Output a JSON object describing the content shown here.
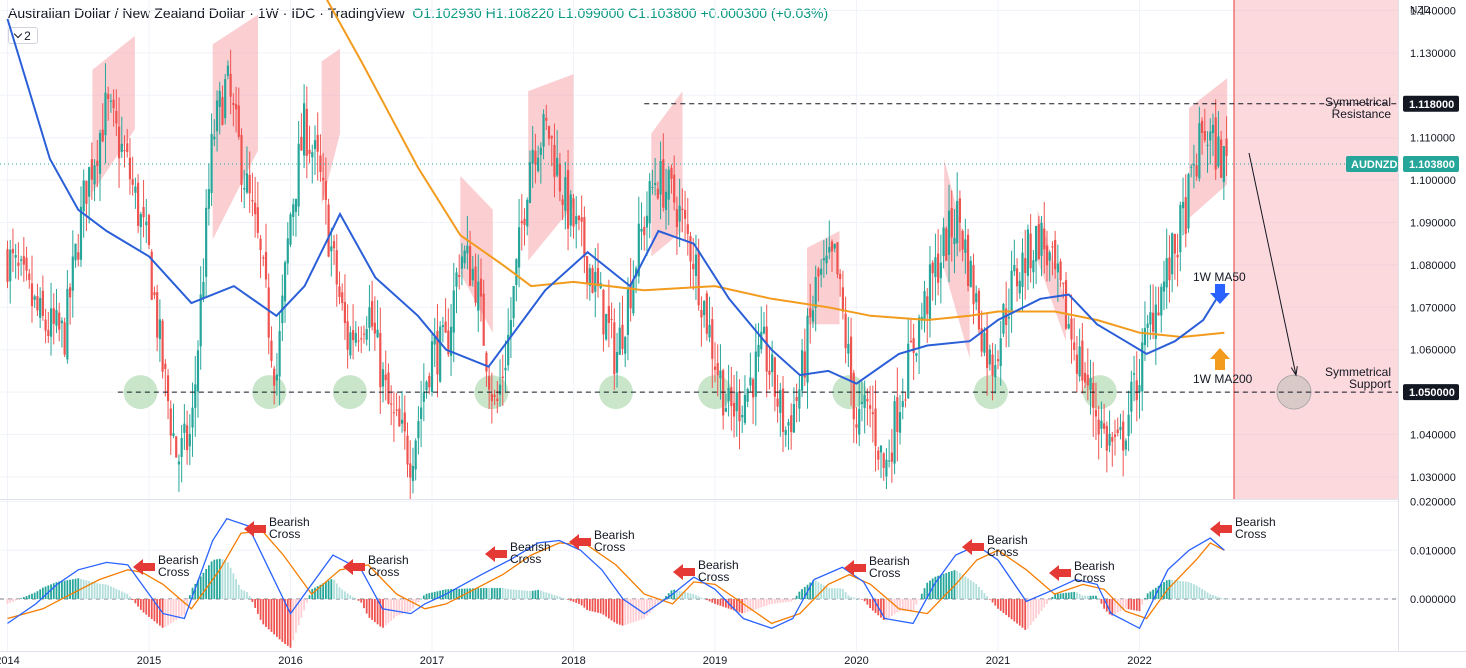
{
  "header": {
    "title": "Australian Dollar / New Zealand Dollar",
    "timeframe": "1W",
    "exchange": "IDC",
    "platform": "TradingView",
    "open": "O1.102930",
    "high": "H1.108220",
    "low": "L1.099000",
    "close": "C1.103800",
    "change": "+0.000300 (+0.03%)",
    "indicator_count": "2"
  },
  "colors": {
    "up": "#26a69a",
    "down": "#ef5350",
    "ma50": "#2a5fd8",
    "ma200": "#f29b1d",
    "macd": "#2962ff",
    "signal": "#f57c00",
    "shade": "#f7a5ad",
    "circle": "#a5d6a7",
    "arrow_red": "#e53935",
    "price_tag": "#26a69a"
  },
  "chart_data": [
    {
      "type": "candlestick",
      "title": "Australian Dollar / New Zealand Dollar · 1W · IDC",
      "currency_label": "NZD",
      "x_ticks": [
        "2014",
        "2015",
        "2016",
        "2017",
        "2018",
        "2019",
        "2020",
        "2021",
        "2022"
      ],
      "y_ticks": [
        "1.030000",
        "1.040000",
        "1.050000",
        "1.060000",
        "1.070000",
        "1.080000",
        "1.090000",
        "1.100000",
        "1.110000",
        "1.120000",
        "1.130000",
        "1.140000"
      ],
      "ylim": [
        1.0208,
        1.1486
      ],
      "last_price": {
        "label": "AUDNZD",
        "value": "1.103800"
      },
      "levels": [
        {
          "name": "Symmetrical Resistance",
          "value": "1.118000"
        },
        {
          "name": "Symmetrical Support",
          "value": "1.050000"
        }
      ],
      "moving_averages": [
        {
          "name": "1W MA50",
          "x": [
            2014.0,
            2014.3,
            2014.5,
            2014.7,
            2015.0,
            2015.3,
            2015.6,
            2015.9,
            2016.1,
            2016.35,
            2016.6,
            2016.9,
            2017.1,
            2017.4,
            2017.6,
            2017.8,
            2018.1,
            2018.4,
            2018.6,
            2018.85,
            2019.1,
            2019.4,
            2019.6,
            2019.8,
            2020.0,
            2020.3,
            2020.5,
            2020.8,
            2021.0,
            2021.3,
            2021.5,
            2021.7,
            2021.9,
            2022.05,
            2022.25,
            2022.45,
            2022.6
          ],
          "y": [
            1.138,
            1.105,
            1.093,
            1.088,
            1.082,
            1.071,
            1.075,
            1.068,
            1.075,
            1.092,
            1.077,
            1.068,
            1.06,
            1.056,
            1.065,
            1.074,
            1.083,
            1.075,
            1.088,
            1.085,
            1.072,
            1.06,
            1.054,
            1.055,
            1.052,
            1.059,
            1.061,
            1.062,
            1.067,
            1.072,
            1.073,
            1.066,
            1.062,
            1.059,
            1.062,
            1.067,
            1.075
          ]
        },
        {
          "name": "1W MA200",
          "x": [
            2016.0,
            2016.5,
            2016.9,
            2017.2,
            2017.5,
            2017.7,
            2018.0,
            2018.5,
            2019.0,
            2019.4,
            2019.8,
            2020.1,
            2020.5,
            2020.8,
            2021.0,
            2021.4,
            2021.7,
            2022.0,
            2022.3,
            2022.6
          ],
          "y": [
            1.158,
            1.128,
            1.103,
            1.087,
            1.08,
            1.075,
            1.076,
            1.074,
            1.075,
            1.072,
            1.07,
            1.068,
            1.067,
            1.068,
            1.069,
            1.069,
            1.067,
            1.064,
            1.063,
            1.064
          ]
        }
      ],
      "annotations": [
        "Symmetrical\nResistance",
        "Symmetrical\nSupport",
        "1W MA50",
        "1W MA200"
      ]
    },
    {
      "type": "macd",
      "y_ticks": [
        "0.000000",
        "0.010000",
        "0.020000"
      ],
      "ylim": [
        -0.0045,
        0.0206
      ],
      "series": [
        {
          "name": "MACD",
          "x": [
            2014.0,
            2014.2,
            2014.35,
            2014.5,
            2014.7,
            2014.85,
            2014.95,
            2015.1,
            2015.25,
            2015.45,
            2015.55,
            2015.7,
            2015.85,
            2016.0,
            2016.1,
            2016.3,
            2016.5,
            2016.65,
            2016.85,
            2016.95,
            2017.1,
            2017.35,
            2017.55,
            2017.75,
            2017.9,
            2018.05,
            2018.2,
            2018.35,
            2018.5,
            2018.7,
            2018.85,
            2019.0,
            2019.2,
            2019.4,
            2019.55,
            2019.7,
            2019.9,
            2020.05,
            2020.2,
            2020.4,
            2020.55,
            2020.7,
            2020.85,
            2021.0,
            2021.2,
            2021.4,
            2021.55,
            2021.7,
            2021.8,
            2022.0,
            2022.2,
            2022.35,
            2022.5,
            2022.6
          ],
          "y": [
            -0.005,
            -0.001,
            0.003,
            0.006,
            0.0075,
            0.007,
            0.003,
            -0.003,
            -0.004,
            0.012,
            0.0165,
            0.015,
            0.006,
            -0.003,
            0.001,
            0.009,
            0.006,
            -0.002,
            -0.003,
            -0.001,
            0.001,
            0.005,
            0.008,
            0.0115,
            0.012,
            0.01,
            0.006,
            0.0,
            -0.003,
            0.001,
            0.0045,
            0.002,
            -0.004,
            -0.006,
            -0.004,
            0.004,
            0.0065,
            0.0035,
            -0.004,
            -0.005,
            0.003,
            0.009,
            0.011,
            0.008,
            -0.0005,
            0.002,
            0.004,
            0.003,
            -0.003,
            -0.006,
            0.006,
            0.01,
            0.0125,
            0.01
          ]
        },
        {
          "name": "Signal",
          "x": [
            2014.0,
            2014.25,
            2014.45,
            2014.65,
            2014.85,
            2014.95,
            2015.1,
            2015.3,
            2015.5,
            2015.65,
            2015.8,
            2015.95,
            2016.15,
            2016.35,
            2016.55,
            2016.75,
            2016.95,
            2017.1,
            2017.3,
            2017.5,
            2017.7,
            2017.9,
            2018.1,
            2018.3,
            2018.5,
            2018.7,
            2018.85,
            2019.0,
            2019.2,
            2019.4,
            2019.6,
            2019.8,
            2019.95,
            2020.1,
            2020.3,
            2020.5,
            2020.7,
            2020.85,
            2021.0,
            2021.2,
            2021.4,
            2021.6,
            2021.75,
            2021.9,
            2022.05,
            2022.2,
            2022.4,
            2022.5,
            2022.6
          ],
          "y": [
            -0.004,
            -0.002,
            0.001,
            0.004,
            0.006,
            0.0055,
            0.003,
            -0.002,
            0.006,
            0.0135,
            0.014,
            0.009,
            0.001,
            0.006,
            0.007,
            0.001,
            -0.002,
            -0.001,
            0.002,
            0.005,
            0.009,
            0.0115,
            0.011,
            0.007,
            0.001,
            -0.001,
            0.0035,
            0.003,
            -0.001,
            -0.005,
            -0.003,
            0.003,
            0.005,
            0.003,
            -0.002,
            -0.003,
            0.003,
            0.008,
            0.01,
            0.006,
            0.001,
            0.003,
            0.002,
            -0.0025,
            -0.004,
            0.002,
            0.008,
            0.0115,
            0.01
          ]
        }
      ],
      "signals": [
        {
          "label": "Bearish\nCross",
          "x": 2014.95
        },
        {
          "label": "Bearish\nCross",
          "x": 2015.85
        },
        {
          "label": "Bearish\nCross",
          "x": 2016.35
        },
        {
          "label": "Bearish\nCross",
          "x": 2017.45
        },
        {
          "label": "Bearish\nCross",
          "x": 2017.95
        },
        {
          "label": "Bearish\nCross",
          "x": 2018.85
        },
        {
          "label": "Bearish\nCross",
          "x": 2019.95
        },
        {
          "label": "Bearish\nCross",
          "x": 2020.7
        },
        {
          "label": "Bearish\nCross",
          "x": 2021.35
        },
        {
          "label": "Bearish\nCross",
          "x": 2022.45
        }
      ]
    }
  ]
}
